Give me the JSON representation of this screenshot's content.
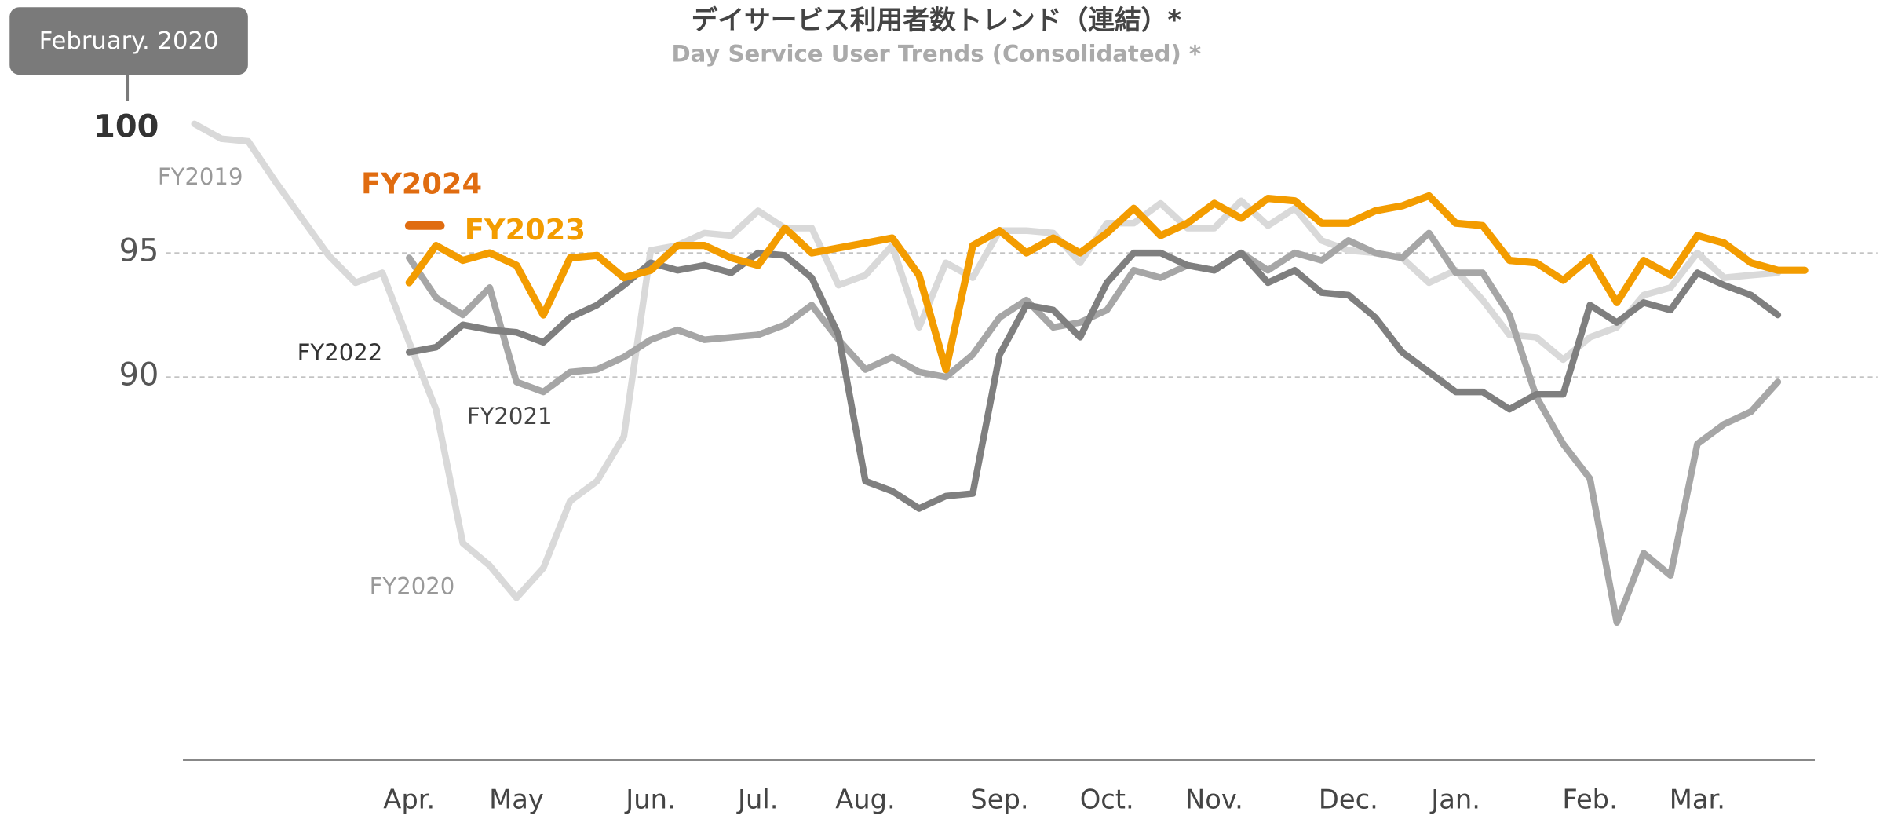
{
  "chart_data": {
    "type": "line",
    "title": "デイサービス利用者数トレンド（連結）*",
    "subtitle": "Day Service User Trends (Consolidated) *",
    "annotation": "February. 2020",
    "x": [
      -8,
      -7,
      -6,
      -5,
      -4,
      -3,
      -2,
      -1,
      0,
      1,
      2,
      3,
      4,
      5,
      6,
      7,
      8,
      9,
      10,
      11,
      12,
      13,
      14,
      15,
      16,
      17,
      18,
      19,
      20,
      21,
      22,
      23,
      24,
      25,
      26,
      27,
      28,
      29,
      30,
      31,
      32,
      33,
      34,
      35,
      36,
      37,
      38,
      39,
      40,
      41,
      42,
      43,
      44,
      45,
      46,
      47,
      48,
      49,
      50,
      51,
      52
    ],
    "xlim": [
      -8,
      52
    ],
    "xticks": [
      {
        "value": 0,
        "label": "Apr."
      },
      {
        "value": 4,
        "label": "May"
      },
      {
        "value": 9,
        "label": "Jun."
      },
      {
        "value": 13,
        "label": "Jul."
      },
      {
        "value": 17,
        "label": "Aug."
      },
      {
        "value": 22,
        "label": "Sep."
      },
      {
        "value": 26,
        "label": "Oct."
      },
      {
        "value": 30,
        "label": "Nov."
      },
      {
        "value": 35,
        "label": "Dec."
      },
      {
        "value": 39,
        "label": "Jan."
      },
      {
        "value": 44,
        "label": "Feb."
      },
      {
        "value": 48,
        "label": "Mar."
      }
    ],
    "ylim": [
      75,
      100
    ],
    "yticks": [
      90,
      95,
      100
    ],
    "grid": true,
    "series": [
      {
        "name": "FY2019",
        "color": "#d9d9d9",
        "values": [
          100.2,
          99.6,
          99.5,
          97.9,
          96.4,
          94.9,
          93.8,
          94.2,
          91.4,
          null,
          null,
          null,
          null,
          null,
          null,
          null,
          null,
          null,
          null,
          null,
          null,
          null,
          null,
          null,
          null,
          null,
          null,
          null,
          null,
          null,
          null,
          null,
          null,
          null,
          null,
          null,
          null,
          null,
          null,
          null,
          null,
          null,
          null,
          null,
          null,
          null,
          null,
          null,
          null,
          null,
          null,
          null,
          null,
          null,
          null,
          null,
          null,
          null,
          null,
          null,
          null
        ]
      },
      {
        "name": "FY2020",
        "color": "#d9d9d9",
        "values": [
          null,
          null,
          null,
          null,
          null,
          null,
          null,
          null,
          91.4,
          88.7,
          83.3,
          82.4,
          81.1,
          82.3,
          85.0,
          85.8,
          87.6,
          95.1,
          95.3,
          95.8,
          95.7,
          96.7,
          96.0,
          96.0,
          93.7,
          94.1,
          95.3,
          92.0,
          94.6,
          94.0,
          95.9,
          95.9,
          95.8,
          94.6,
          96.2,
          96.2,
          97.0,
          96.0,
          96.0,
          97.1,
          96.1,
          96.8,
          95.5,
          95.1,
          95.0,
          94.8,
          93.8,
          94.3,
          93.1,
          91.7,
          91.6,
          90.7,
          91.6,
          92.0,
          93.3,
          93.6,
          95.0,
          94.0,
          94.1,
          94.2,
          null
        ]
      },
      {
        "name": "FY2021",
        "color": "#a6a6a6",
        "values": [
          null,
          null,
          null,
          null,
          null,
          null,
          null,
          null,
          94.8,
          93.2,
          92.5,
          93.6,
          89.8,
          89.4,
          90.2,
          90.3,
          90.8,
          91.5,
          91.9,
          91.5,
          91.6,
          91.7,
          92.1,
          92.9,
          91.5,
          90.3,
          90.8,
          90.2,
          90.0,
          90.9,
          92.4,
          93.1,
          92.0,
          92.2,
          92.7,
          94.3,
          94.0,
          94.5,
          94.3,
          95.0,
          94.3,
          95.0,
          94.7,
          95.5,
          95.0,
          94.8,
          95.8,
          94.2,
          94.2,
          92.5,
          89.2,
          87.3,
          85.9,
          80.1,
          82.9,
          82.0,
          87.3,
          88.1,
          88.6,
          89.8,
          null
        ]
      },
      {
        "name": "FY2022",
        "color": "#7f7f7f",
        "values": [
          null,
          null,
          null,
          null,
          null,
          null,
          null,
          null,
          91.0,
          91.2,
          92.1,
          91.9,
          91.8,
          91.4,
          92.4,
          92.9,
          93.7,
          94.6,
          94.3,
          94.5,
          94.2,
          95.0,
          94.9,
          94.0,
          91.7,
          85.8,
          85.4,
          84.7,
          85.2,
          85.3,
          90.9,
          92.9,
          92.7,
          91.6,
          93.8,
          95.0,
          95.0,
          94.5,
          94.3,
          95.0,
          93.8,
          94.3,
          93.4,
          93.3,
          92.4,
          91.0,
          90.2,
          89.4,
          89.4,
          88.7,
          89.3,
          89.3,
          92.9,
          92.2,
          93.0,
          92.7,
          94.2,
          93.7,
          93.3,
          92.5,
          null
        ]
      },
      {
        "name": "FY2023",
        "color": "#f39c00",
        "values": [
          null,
          null,
          null,
          null,
          null,
          null,
          null,
          null,
          93.8,
          95.3,
          94.7,
          95.0,
          94.5,
          92.5,
          94.8,
          94.9,
          94.0,
          94.3,
          95.3,
          95.3,
          94.8,
          94.5,
          96.0,
          95.0,
          95.2,
          95.4,
          95.6,
          94.1,
          90.3,
          95.3,
          95.9,
          95.0,
          95.6,
          95.0,
          95.8,
          96.8,
          95.7,
          96.2,
          97.0,
          96.4,
          97.2,
          97.1,
          96.2,
          96.2,
          96.7,
          96.9,
          97.3,
          96.2,
          96.1,
          94.7,
          94.6,
          93.9,
          94.8,
          93.0,
          94.7,
          94.1,
          95.7,
          95.4,
          94.6,
          94.3,
          94.3
        ]
      },
      {
        "name": "FY2024",
        "color": "#e06c10",
        "values": [
          null,
          null,
          null,
          null,
          null,
          null,
          null,
          null,
          96.1,
          null,
          null,
          null,
          null,
          null,
          null,
          null,
          null,
          null,
          null,
          null,
          null,
          null,
          null,
          null,
          null,
          null,
          null,
          null,
          null,
          null,
          null,
          null,
          null,
          null,
          null,
          null,
          null,
          null,
          null,
          null,
          null,
          null,
          null,
          null,
          null,
          null,
          null,
          null,
          null,
          null,
          null,
          null,
          null,
          null,
          null,
          null,
          null,
          null,
          null,
          null,
          null
        ]
      }
    ]
  }
}
